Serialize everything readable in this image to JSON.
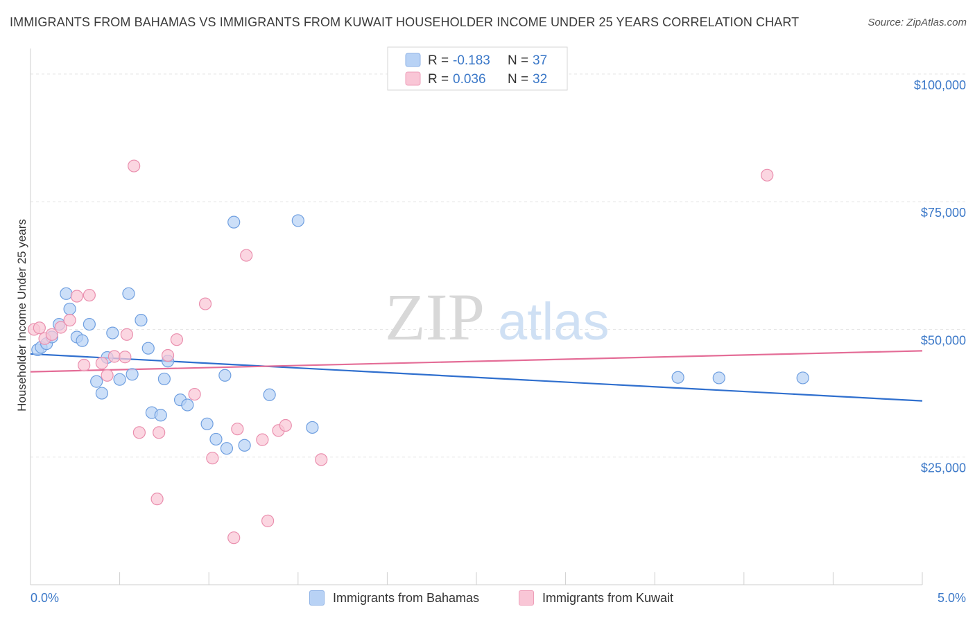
{
  "title": "IMMIGRANTS FROM BAHAMAS VS IMMIGRANTS FROM KUWAIT HOUSEHOLDER INCOME UNDER 25 YEARS CORRELATION CHART",
  "source": "Source: ZipAtlas.com",
  "watermark": {
    "zip": "ZIP",
    "atlas": "atlas"
  },
  "legend_top": [
    {
      "r_label": "R = ",
      "r_value": "-0.183",
      "n_label": "N = ",
      "n_value": "37"
    },
    {
      "r_label": "R = ",
      "r_value": "0.036",
      "n_label": "N = ",
      "n_value": "32"
    }
  ],
  "legend_bottom": [
    "Immigrants from Bahamas",
    "Immigrants from Kuwait"
  ],
  "colors": {
    "blue_fill": "#b8d2f5",
    "blue_stroke": "#6f9fe0",
    "blue_line": "#2f6fce",
    "pink_fill": "#f9c6d6",
    "pink_stroke": "#ea8fae",
    "pink_line": "#e46d97",
    "tick_text": "#3b78c8"
  },
  "chart_data": {
    "type": "scatter",
    "title": "IMMIGRANTS FROM BAHAMAS VS IMMIGRANTS FROM KUWAIT HOUSEHOLDER INCOME UNDER 25 YEARS CORRELATION CHART",
    "xlabel": "",
    "ylabel": "Householder Income Under 25 years",
    "xlim": [
      0,
      5
    ],
    "ylim": [
      0,
      105000
    ],
    "x_tick_labels": [
      "0.0%",
      "5.0%"
    ],
    "y_ticks": [
      {
        "value": 25000,
        "label": "$25,000"
      },
      {
        "value": 50000,
        "label": "$50,000"
      },
      {
        "value": 75000,
        "label": "$75,000"
      },
      {
        "value": 100000,
        "label": "$100,000"
      }
    ],
    "grid": true,
    "legend_position": "top-center",
    "series": [
      {
        "name": "Immigrants from Bahamas",
        "color": "blue",
        "points": [
          [
            0.04,
            46000
          ],
          [
            0.06,
            46500
          ],
          [
            0.09,
            47200
          ],
          [
            0.12,
            48500
          ],
          [
            0.16,
            51000
          ],
          [
            0.2,
            57000
          ],
          [
            0.22,
            54000
          ],
          [
            0.26,
            48500
          ],
          [
            0.29,
            47800
          ],
          [
            0.33,
            51000
          ],
          [
            0.37,
            39800
          ],
          [
            0.4,
            37500
          ],
          [
            0.43,
            44500
          ],
          [
            0.46,
            49300
          ],
          [
            0.5,
            40200
          ],
          [
            0.55,
            57000
          ],
          [
            0.57,
            41200
          ],
          [
            0.62,
            51800
          ],
          [
            0.66,
            46300
          ],
          [
            0.68,
            33700
          ],
          [
            0.73,
            33200
          ],
          [
            0.75,
            40300
          ],
          [
            0.77,
            43800
          ],
          [
            0.84,
            36200
          ],
          [
            0.88,
            35200
          ],
          [
            0.99,
            31500
          ],
          [
            1.04,
            28500
          ],
          [
            1.09,
            41000
          ],
          [
            1.1,
            26700
          ],
          [
            1.14,
            71000
          ],
          [
            1.2,
            27300
          ],
          [
            1.34,
            37200
          ],
          [
            1.5,
            71300
          ],
          [
            1.58,
            30800
          ],
          [
            3.63,
            40600
          ],
          [
            3.86,
            40500
          ],
          [
            4.33,
            40500
          ]
        ]
      },
      {
        "name": "Immigrants from Kuwait",
        "color": "pink",
        "points": [
          [
            0.02,
            50000
          ],
          [
            0.05,
            50300
          ],
          [
            0.08,
            48200
          ],
          [
            0.12,
            49000
          ],
          [
            0.17,
            50400
          ],
          [
            0.22,
            51800
          ],
          [
            0.26,
            56500
          ],
          [
            0.3,
            43000
          ],
          [
            0.33,
            56700
          ],
          [
            0.4,
            43400
          ],
          [
            0.43,
            41000
          ],
          [
            0.47,
            44700
          ],
          [
            0.53,
            44600
          ],
          [
            0.54,
            49000
          ],
          [
            0.58,
            82000
          ],
          [
            0.61,
            29800
          ],
          [
            0.71,
            16800
          ],
          [
            0.72,
            29800
          ],
          [
            0.77,
            44900
          ],
          [
            0.82,
            48000
          ],
          [
            0.92,
            37300
          ],
          [
            0.98,
            55000
          ],
          [
            1.02,
            24800
          ],
          [
            1.14,
            9200
          ],
          [
            1.16,
            30500
          ],
          [
            1.21,
            64500
          ],
          [
            1.3,
            28400
          ],
          [
            1.33,
            12500
          ],
          [
            1.39,
            30200
          ],
          [
            1.43,
            31200
          ],
          [
            1.63,
            24500
          ],
          [
            4.13,
            80200
          ]
        ]
      }
    ],
    "trendlines": [
      {
        "series": "Immigrants from Bahamas",
        "x": [
          0,
          5
        ],
        "y": [
          45200,
          36000
        ]
      },
      {
        "series": "Immigrants from Kuwait",
        "x": [
          0,
          5
        ],
        "y": [
          41700,
          45800
        ]
      }
    ]
  }
}
